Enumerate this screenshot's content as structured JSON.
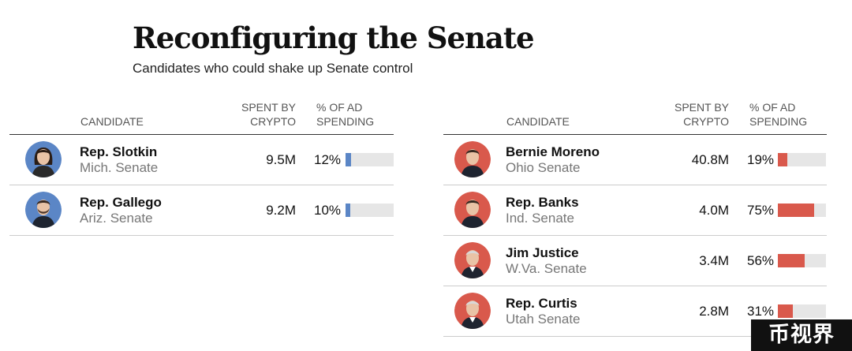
{
  "header": {
    "title": "Reconfiguring the Senate",
    "subtitle": "Candidates who could shake up Senate control"
  },
  "columns": {
    "candidate": "CANDIDATE",
    "spent_line1": "SPENT BY",
    "spent_line2": "CRYPTO",
    "pct_line1": "% OF AD",
    "pct_line2": "SPENDING"
  },
  "colors": {
    "democrat": "#5b86c6",
    "republican": "#d9594c"
  },
  "chart_data": {
    "type": "table",
    "columns": [
      "CANDIDATE",
      "SPENT BY CRYPTO",
      "% OF AD SPENDING"
    ],
    "tables": [
      {
        "party": "democrat",
        "rows": [
          {
            "name": "Rep. Slotkin",
            "race": "Mich. Senate",
            "spent": "9.5M",
            "pct_label": "12%",
            "pct": 12,
            "avatar": "portrait-woman-icon"
          },
          {
            "name": "Rep. Gallego",
            "race": "Ariz. Senate",
            "spent": "9.2M",
            "pct_label": "10%",
            "pct": 10,
            "avatar": "portrait-man-beard-icon"
          }
        ]
      },
      {
        "party": "republican",
        "rows": [
          {
            "name": "Bernie Moreno",
            "race": "Ohio Senate",
            "spent": "40.8M",
            "pct_label": "19%",
            "pct": 19,
            "avatar": "portrait-man-icon"
          },
          {
            "name": "Rep. Banks",
            "race": "Ind. Senate",
            "spent": "4.0M",
            "pct_label": "75%",
            "pct": 75,
            "avatar": "portrait-man-icon"
          },
          {
            "name": "Jim Justice",
            "race": "W.Va. Senate",
            "spent": "3.4M",
            "pct_label": "56%",
            "pct": 56,
            "avatar": "portrait-man-suit-icon"
          },
          {
            "name": "Rep. Curtis",
            "race": "Utah Senate",
            "spent": "2.8M",
            "pct_label": "31%",
            "pct": 31,
            "avatar": "portrait-man-suit-icon"
          }
        ]
      }
    ]
  },
  "watermark": "币视界"
}
